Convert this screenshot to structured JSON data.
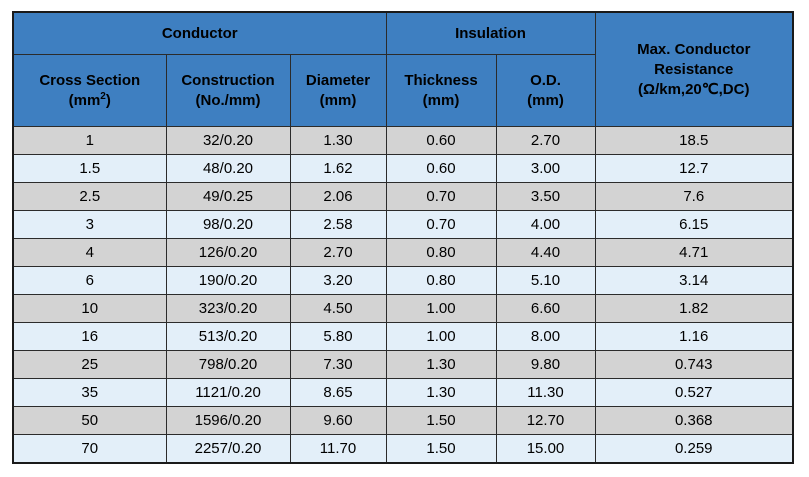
{
  "table": {
    "group_conductor": "Conductor",
    "group_insulation": "Insulation",
    "resistance_header": {
      "line1": "Max. Conductor",
      "line2": "Resistance",
      "line3": "(Ω/km,20℃,DC)"
    },
    "col_cross_section": {
      "label": "Cross Section",
      "unit_open": "(mm",
      "unit_sup": "2",
      "unit_close": ")"
    },
    "col_construction": {
      "label": "Construction",
      "unit": "(No./mm)"
    },
    "col_diameter": {
      "label": "Diameter",
      "unit": "(mm)"
    },
    "col_thickness": {
      "label": "Thickness",
      "unit": "(mm)"
    },
    "col_od": {
      "label": "O.D.",
      "unit": "(mm)"
    },
    "rows": [
      {
        "cross_section": "1",
        "construction": "32/0.20",
        "diameter": "1.30",
        "thickness": "0.60",
        "od": "2.70",
        "resistance": "18.5"
      },
      {
        "cross_section": "1.5",
        "construction": "48/0.20",
        "diameter": "1.62",
        "thickness": "0.60",
        "od": "3.00",
        "resistance": "12.7"
      },
      {
        "cross_section": "2.5",
        "construction": "49/0.25",
        "diameter": "2.06",
        "thickness": "0.70",
        "od": "3.50",
        "resistance": "7.6"
      },
      {
        "cross_section": "3",
        "construction": "98/0.20",
        "diameter": "2.58",
        "thickness": "0.70",
        "od": "4.00",
        "resistance": "6.15"
      },
      {
        "cross_section": "4",
        "construction": "126/0.20",
        "diameter": "2.70",
        "thickness": "0.80",
        "od": "4.40",
        "resistance": "4.71"
      },
      {
        "cross_section": "6",
        "construction": "190/0.20",
        "diameter": "3.20",
        "thickness": "0.80",
        "od": "5.10",
        "resistance": "3.14"
      },
      {
        "cross_section": "10",
        "construction": "323/0.20",
        "diameter": "4.50",
        "thickness": "1.00",
        "od": "6.60",
        "resistance": "1.82"
      },
      {
        "cross_section": "16",
        "construction": "513/0.20",
        "diameter": "5.80",
        "thickness": "1.00",
        "od": "8.00",
        "resistance": "1.16"
      },
      {
        "cross_section": "25",
        "construction": "798/0.20",
        "diameter": "7.30",
        "thickness": "1.30",
        "od": "9.80",
        "resistance": "0.743"
      },
      {
        "cross_section": "35",
        "construction": "1121/0.20",
        "diameter": "8.65",
        "thickness": "1.30",
        "od": "11.30",
        "resistance": "0.527"
      },
      {
        "cross_section": "50",
        "construction": "1596/0.20",
        "diameter": "9.60",
        "thickness": "1.50",
        "od": "12.70",
        "resistance": "0.368"
      },
      {
        "cross_section": "70",
        "construction": "2257/0.20",
        "diameter": "11.70",
        "thickness": "1.50",
        "od": "15.00",
        "resistance": "0.259"
      }
    ],
    "colors": {
      "header": "#3e7fc1",
      "row_gray": "#d3d3d3",
      "row_light": "#e3eff9"
    }
  }
}
